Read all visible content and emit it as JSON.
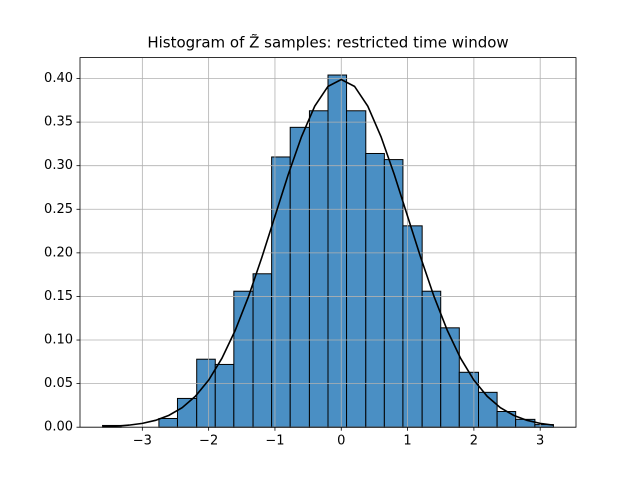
{
  "chart_data": {
    "type": "histogram",
    "title": "Histogram of Z̃ samples: restricted time window",
    "bins": [
      -3.6,
      -3.32,
      -3.03,
      -2.75,
      -2.47,
      -2.18,
      -1.9,
      -1.62,
      -1.33,
      -1.05,
      -0.77,
      -0.48,
      -0.2,
      0.08,
      0.37,
      0.65,
      0.93,
      1.22,
      1.5,
      1.78,
      2.07,
      2.35,
      2.63,
      2.92,
      3.2
    ],
    "values": [
      0.002,
      0,
      0,
      0.01,
      0.033,
      0.078,
      0.072,
      0.156,
      0.176,
      0.31,
      0.344,
      0.363,
      0.404,
      0.363,
      0.314,
      0.307,
      0.231,
      0.156,
      0.114,
      0.063,
      0.04,
      0.018,
      0.009,
      0.003
    ],
    "color": "#4a8fc4",
    "edgecolor": "#000000",
    "overlay": {
      "type": "line",
      "color": "#000000",
      "x": [
        -3.6,
        -3.4,
        -3.2,
        -3.0,
        -2.8,
        -2.6,
        -2.4,
        -2.2,
        -2.0,
        -1.8,
        -1.6,
        -1.4,
        -1.2,
        -1.0,
        -0.8,
        -0.6,
        -0.4,
        -0.2,
        0,
        0.2,
        0.4,
        0.6,
        0.8,
        1.0,
        1.2,
        1.4,
        1.6,
        1.8,
        2.0,
        2.2,
        2.4,
        2.6,
        2.8,
        3.0,
        3.2
      ],
      "values": [
        0.0006,
        0.0012,
        0.0024,
        0.0044,
        0.0079,
        0.0136,
        0.0224,
        0.0355,
        0.054,
        0.079,
        0.1109,
        0.1497,
        0.1942,
        0.242,
        0.2897,
        0.3332,
        0.3683,
        0.391,
        0.3989,
        0.391,
        0.3683,
        0.3332,
        0.2897,
        0.242,
        0.1942,
        0.1497,
        0.1109,
        0.079,
        0.054,
        0.0355,
        0.0224,
        0.0136,
        0.0079,
        0.0044,
        0.0024
      ]
    },
    "xlim": [
      -3.94,
      3.54
    ],
    "ylim": [
      0,
      0.424
    ],
    "xticks": [
      {
        "value": -3,
        "label": "−3"
      },
      {
        "value": -2,
        "label": "−2"
      },
      {
        "value": -1,
        "label": "−1"
      },
      0,
      1,
      2,
      3
    ],
    "yticks": [
      {
        "value": 0,
        "label": "0.00"
      },
      {
        "value": 0.05,
        "label": "0.05"
      },
      {
        "value": 0.1,
        "label": "0.10"
      },
      {
        "value": 0.15,
        "label": "0.15"
      },
      {
        "value": 0.2,
        "label": "0.20"
      },
      {
        "value": 0.25,
        "label": "0.25"
      },
      {
        "value": 0.3,
        "label": "0.30"
      },
      {
        "value": 0.35,
        "label": "0.35"
      },
      {
        "value": 0.4,
        "label": "0.40"
      }
    ],
    "grid": true
  }
}
